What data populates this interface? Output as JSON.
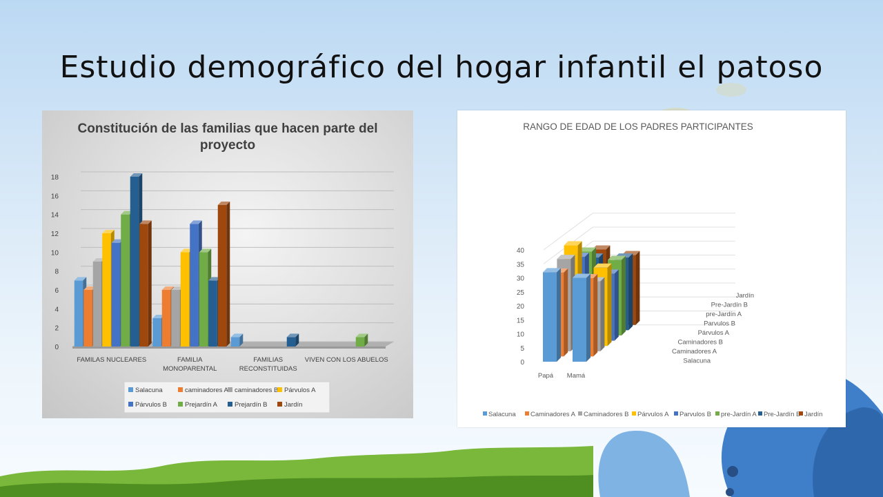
{
  "slide": {
    "title": "Estudio demográfico del hogar infantil el patoso"
  },
  "chart_data": [
    {
      "type": "bar",
      "title": "Constitución de las familias que hacen parte del proyecto",
      "title_lines": [
        "Constitución de las familias que hacen parte del",
        "proyecto"
      ],
      "categories": [
        "FAMILAS NUCLEARES",
        "FAMILIA MONOPARENTAL",
        "FAMILIAS RECONSTITUIDAS",
        "VIVEN CON LOS ABUELOS"
      ],
      "category_lines": [
        [
          "FAMILAS NUCLEARES"
        ],
        [
          "FAMILIA",
          "MONOPARENTAL"
        ],
        [
          "FAMILIAS",
          "RECONSTITUIDAS"
        ],
        [
          "VIVEN CON LOS ABUELOS"
        ]
      ],
      "series": [
        {
          "name": "Salacuna",
          "values": [
            7,
            3,
            1,
            0
          ],
          "color": "#5b9bd5"
        },
        {
          "name": "caminadores A",
          "values": [
            6,
            6,
            0,
            0
          ],
          "color": "#ed7d31"
        },
        {
          "name": "caminadores B",
          "values": [
            9,
            6,
            0,
            0
          ],
          "color": "#a5a5a5"
        },
        {
          "name": "Párvulos A",
          "values": [
            12,
            10,
            0,
            0
          ],
          "color": "#ffc000"
        },
        {
          "name": "Párvulos B",
          "values": [
            11,
            13,
            0,
            0
          ],
          "color": "#4472c4"
        },
        {
          "name": "Prejardín A",
          "values": [
            14,
            10,
            0,
            1
          ],
          "color": "#70ad47"
        },
        {
          "name": "Prejardín B",
          "values": [
            18,
            7,
            1,
            0
          ],
          "color": "#255e91"
        },
        {
          "name": "Jardín",
          "values": [
            13,
            15,
            0,
            0
          ],
          "color": "#9e480e"
        }
      ],
      "ylim": [
        0,
        18
      ],
      "yticks": [
        "0",
        "2",
        "4",
        "6",
        "8",
        "10",
        "12",
        "14",
        "16",
        "18"
      ],
      "grid": true,
      "legend": "bottom"
    },
    {
      "type": "bar",
      "title": "RANGO DE EDAD DE LOS PADRES PARTICIPANTES",
      "categories": [
        "Papá",
        "Mamá"
      ],
      "series": [
        {
          "name": "Salacuna",
          "values": [
            32,
            30
          ],
          "color": "#5b9bd5"
        },
        {
          "name": "Caminadores A",
          "values": [
            30,
            28
          ],
          "color": "#ed7d31"
        },
        {
          "name": "Caminadores B",
          "values": [
            33,
            25
          ],
          "color": "#a5a5a5"
        },
        {
          "name": "Párvulos A",
          "values": [
            36,
            28
          ],
          "color": "#ffc000"
        },
        {
          "name": "Parvulos B",
          "values": [
            30,
            24
          ],
          "color": "#4472c4"
        },
        {
          "name": "pre-Jardín A",
          "values": [
            30,
            27
          ],
          "color": "#70ad47"
        },
        {
          "name": "Pre-Jardín B",
          "values": [
            26,
            26
          ],
          "color": "#255e91"
        },
        {
          "name": "Jardín",
          "values": [
            27,
            25
          ],
          "color": "#9e480e"
        }
      ],
      "depth_labels": [
        "Jardín",
        "Pre-Jardín B",
        "pre-Jardín A",
        "Parvulos B",
        "Párvulos A",
        "Caminadores B",
        "Caminadores A",
        "Salacuna"
      ],
      "ylim": [
        0,
        40
      ],
      "yticks": [
        "0",
        "5",
        "10",
        "15",
        "20",
        "25",
        "30",
        "35",
        "40"
      ],
      "grid": true,
      "legend": "bottom"
    }
  ]
}
